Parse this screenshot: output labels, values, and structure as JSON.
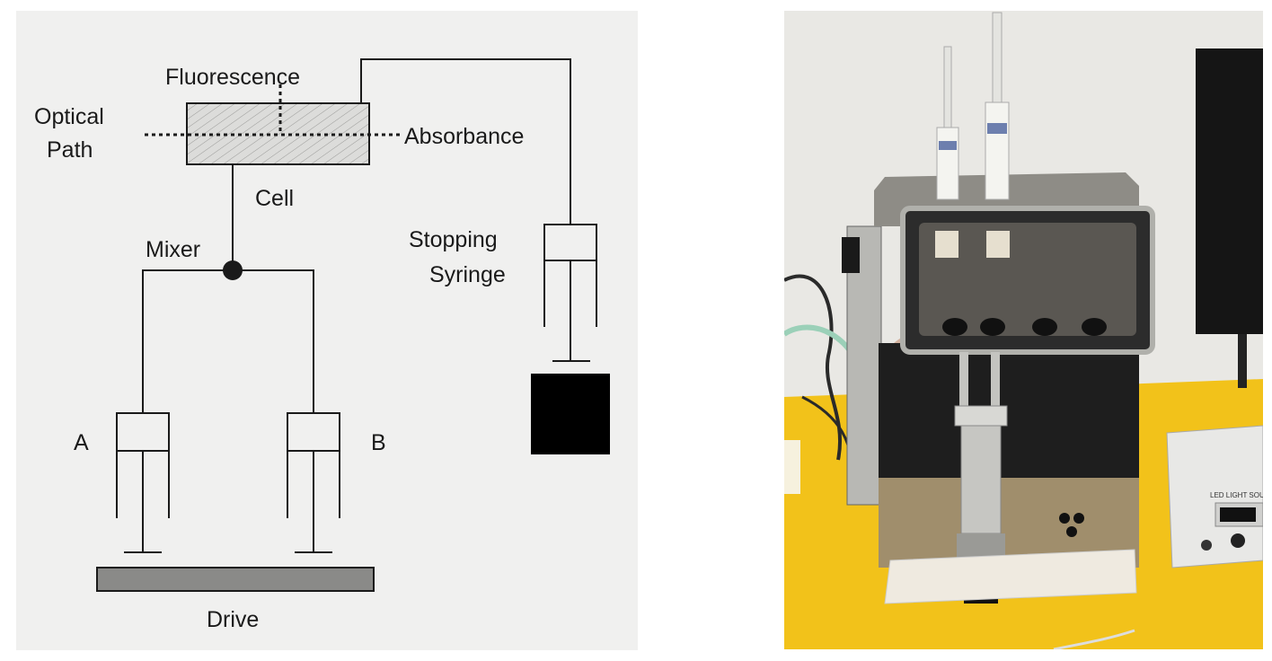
{
  "diagram": {
    "labels": {
      "fluorescence": "Fluorescence",
      "optical": "Optical",
      "path": "Path",
      "absorbance": "Absorbance",
      "cell": "Cell",
      "mixer": "Mixer",
      "stopping": "Stopping",
      "syringe": "Syringe",
      "a": "A",
      "b": "B",
      "drive": "Drive"
    },
    "colors": {
      "background": "#f0f0ef",
      "line": "#1a1a1a",
      "cell_fill": "#d6d6d4",
      "drive_fill": "#8a8a88",
      "stop_block": "#000000"
    }
  },
  "photo": {
    "device_label_text": "LED LIGHT SOURCE",
    "colors": {
      "wall": "#e9e8e4",
      "bench": "#f2c21a",
      "steel": "#b8b8b4",
      "black": "#1a1a1a"
    }
  }
}
